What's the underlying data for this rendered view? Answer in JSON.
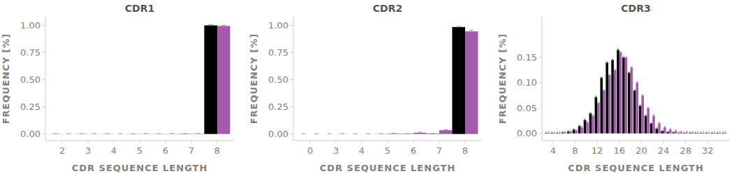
{
  "chart_data": [
    {
      "type": "bar",
      "title": "CDR1",
      "x_label": "CDR SEQUENCE LENGTH",
      "y_label": "FREQUENCY [%]",
      "categories": [
        "2",
        "3",
        "4",
        "5",
        "6",
        "7",
        "8"
      ],
      "series": [
        {
          "color": "#000000",
          "values": [
            0.001,
            0.001,
            0.001,
            0.001,
            0.001,
            0.002,
            1.0
          ],
          "errors": [
            0.002,
            0.002,
            0.002,
            0.002,
            0.002,
            0.002,
            0.006
          ]
        },
        {
          "color": "#a35bab",
          "values": [
            0.001,
            0.001,
            0.001,
            0.002,
            0.002,
            0.003,
            0.995
          ],
          "errors": [
            0.002,
            0.002,
            0.002,
            0.002,
            0.002,
            0.002,
            0.006
          ]
        }
      ],
      "ylim": [
        -0.06,
        1.08
      ],
      "yticks": [
        {
          "value": 0,
          "label": "0.00"
        },
        {
          "value": 0.25,
          "label": "0.25"
        },
        {
          "value": 0.5,
          "label": "0.50"
        },
        {
          "value": 0.75,
          "label": "0.75"
        },
        {
          "value": 1.0,
          "label": "1.00"
        }
      ],
      "grid": false
    },
    {
      "type": "bar",
      "title": "CDR2",
      "x_label": "CDR SEQUENCE LENGTH",
      "y_label": "FREQUENCY [%]",
      "categories": [
        "0",
        "3",
        "4",
        "5",
        "6",
        "7",
        "8"
      ],
      "series": [
        {
          "color": "#000000",
          "values": [
            0.0,
            0.0,
            0.0,
            0.001,
            0.002,
            0.003,
            0.985
          ],
          "errors": [
            0.002,
            0.002,
            0.002,
            0.002,
            0.002,
            0.002,
            0.006
          ]
        },
        {
          "color": "#a35bab",
          "values": [
            0.0,
            0.001,
            0.001,
            0.005,
            0.012,
            0.035,
            0.945
          ],
          "errors": [
            0.002,
            0.002,
            0.002,
            0.003,
            0.004,
            0.004,
            0.012
          ]
        }
      ],
      "ylim": [
        -0.06,
        1.08
      ],
      "yticks": [
        {
          "value": 0,
          "label": "0.00"
        },
        {
          "value": 0.25,
          "label": "0.25"
        },
        {
          "value": 0.5,
          "label": "0.50"
        },
        {
          "value": 0.75,
          "label": "0.75"
        },
        {
          "value": 1.0,
          "label": "1.00"
        }
      ],
      "grid": false
    },
    {
      "type": "bar",
      "title": "CDR3",
      "x_label": "CDR SEQUENCE LENGTH",
      "y_label": "FREQUENCY [%]",
      "x": [
        3,
        4,
        5,
        6,
        7,
        8,
        9,
        10,
        11,
        12,
        13,
        14,
        15,
        16,
        17,
        18,
        19,
        20,
        21,
        22,
        23,
        24,
        25,
        26,
        27,
        28,
        29,
        30,
        31,
        32,
        33,
        34,
        35
      ],
      "series": [
        {
          "color": "#000000",
          "values": [
            0.001,
            0.001,
            0.001,
            0.002,
            0.004,
            0.008,
            0.015,
            0.027,
            0.04,
            0.072,
            0.11,
            0.14,
            0.145,
            0.165,
            0.15,
            0.12,
            0.085,
            0.055,
            0.035,
            0.02,
            0.01,
            0.005,
            0.003,
            0.002,
            0.001,
            0.001,
            0.001,
            0.001,
            0.001,
            0.001,
            0.001,
            0.001,
            0.001
          ],
          "errors": [
            0.002,
            0.002,
            0.002,
            0.002,
            0.002,
            0.002,
            0.002,
            0.002,
            0.002,
            0.002,
            0.002,
            0.002,
            0.002,
            0.002,
            0.002,
            0.002,
            0.002,
            0.002,
            0.002,
            0.002,
            0.002,
            0.002,
            0.002,
            0.002,
            0.002,
            0.002,
            0.002,
            0.002,
            0.002,
            0.002,
            0.002,
            0.002,
            0.002
          ]
        },
        {
          "color": "#a35bab",
          "values": [
            0.001,
            0.001,
            0.001,
            0.002,
            0.004,
            0.006,
            0.012,
            0.022,
            0.035,
            0.06,
            0.085,
            0.115,
            0.125,
            0.16,
            0.15,
            0.13,
            0.1,
            0.075,
            0.05,
            0.035,
            0.02,
            0.012,
            0.008,
            0.005,
            0.003,
            0.002,
            0.002,
            0.001,
            0.001,
            0.001,
            0.001,
            0.001,
            0.001
          ],
          "errors": [
            0.002,
            0.002,
            0.002,
            0.002,
            0.002,
            0.002,
            0.002,
            0.002,
            0.002,
            0.002,
            0.002,
            0.002,
            0.002,
            0.002,
            0.002,
            0.002,
            0.002,
            0.002,
            0.002,
            0.002,
            0.002,
            0.002,
            0.002,
            0.002,
            0.002,
            0.002,
            0.002,
            0.002,
            0.002,
            0.002,
            0.002,
            0.002,
            0.002
          ]
        }
      ],
      "xlim": [
        2,
        36
      ],
      "xticks": [
        4,
        8,
        12,
        16,
        20,
        24,
        28,
        32
      ],
      "ylim": [
        -0.014,
        0.23
      ],
      "yticks": [
        {
          "value": 0,
          "label": "0.00"
        },
        {
          "value": 0.05,
          "label": "0.05"
        },
        {
          "value": 0.1,
          "label": "0.10"
        },
        {
          "value": 0.15,
          "label": "0.15"
        }
      ],
      "grid": false
    }
  ]
}
